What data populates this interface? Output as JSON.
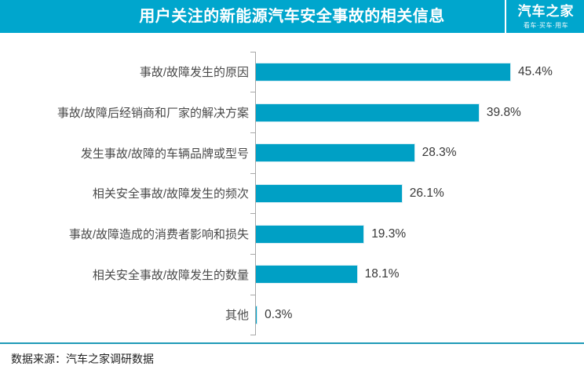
{
  "header": {
    "title": "用户关注的新能源汽车安全事故的相关信息",
    "bg_color": "#00a6cd",
    "logo": {
      "name": "汽车之家",
      "slogan": "看车·买车·用车"
    }
  },
  "chart_data": {
    "type": "bar",
    "orientation": "horizontal",
    "title": "用户关注的新能源汽车安全事故的相关信息",
    "categories": [
      "事故/故障发生的原因",
      "事故/故障后经销商和厂家的解决方案",
      "发生事故/故障的车辆品牌或型号",
      "相关安全事故/故障发生的频次",
      "事故/故障造成的消费者影响和损失",
      "相关安全事故/故障发生的数量",
      "其他"
    ],
    "values": [
      45.4,
      39.8,
      28.3,
      26.1,
      19.3,
      18.1,
      0.3
    ],
    "value_suffix": "%",
    "xlim": [
      0,
      50
    ],
    "grid": false,
    "legend": false,
    "bar_color": "#00a0c5",
    "bar_border_color": "#d6edf4",
    "axis_color": "#a8a8a8",
    "label_color": "#4a4a4a",
    "value_label_color": "#383838"
  },
  "footer": {
    "source_label": "数据来源：汽车之家调研数据",
    "divider_color": "#1f9ab7"
  }
}
